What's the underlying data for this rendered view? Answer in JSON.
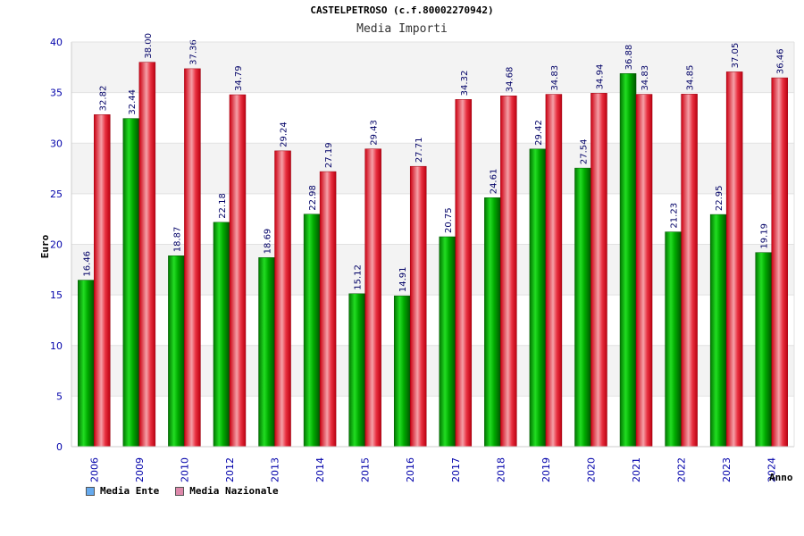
{
  "chart_data": {
    "type": "bar",
    "title": "CASTELPETROSO (c.f.80002270942)",
    "subtitle": "Media Importi",
    "xlabel": "Anno",
    "ylabel": "Euro",
    "ylim": [
      0,
      40
    ],
    "yticks": [
      "0",
      "5",
      "10",
      "15",
      "20",
      "25",
      "30",
      "35",
      "40"
    ],
    "categories": [
      "2006",
      "2009",
      "2010",
      "2012",
      "2013",
      "2014",
      "2015",
      "2016",
      "2017",
      "2018",
      "2019",
      "2020",
      "2021",
      "2022",
      "2023",
      "2024"
    ],
    "series": [
      {
        "name": "Media Ente",
        "color": "#00aa00",
        "legend_color": "#66aaee",
        "values": [
          16.46,
          32.44,
          18.87,
          22.18,
          18.69,
          22.98,
          15.12,
          14.91,
          20.75,
          24.61,
          29.42,
          27.54,
          36.88,
          21.23,
          22.95,
          19.19
        ],
        "labels": [
          "16.46",
          "32.44",
          "18.87",
          "22.18",
          "18.69",
          "22.98",
          "15.12",
          "14.91",
          "20.75",
          "24.61",
          "29.42",
          "27.54",
          "36.88",
          "21.23",
          "22.95",
          "19.19"
        ]
      },
      {
        "name": "Media Nazionale",
        "color": "#dd1122",
        "legend_color": "#dd88aa",
        "values": [
          32.82,
          38.0,
          37.36,
          34.79,
          29.24,
          27.19,
          29.43,
          27.71,
          34.32,
          34.68,
          34.83,
          34.94,
          34.83,
          34.85,
          37.05,
          36.46
        ],
        "labels": [
          "32.82",
          "38.00",
          "37.36",
          "34.79",
          "29.24",
          "27.19",
          "29.43",
          "27.71",
          "34.32",
          "34.68",
          "34.83",
          "34.94",
          "34.83",
          "34.85",
          "37.05",
          "36.46"
        ]
      }
    ]
  }
}
